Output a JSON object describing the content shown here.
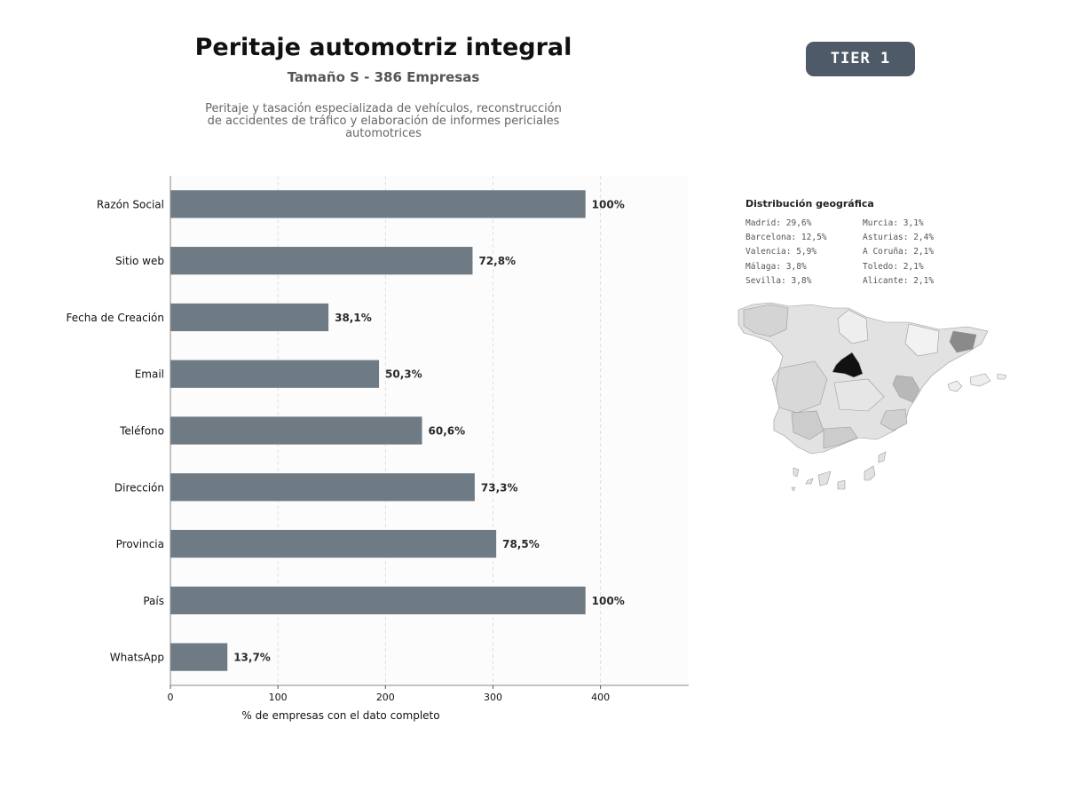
{
  "header": {
    "title": "Peritaje automotriz integral",
    "subtitle": "Tamaño S - 386 Empresas",
    "description": "Peritaje y tasación especializada de vehículos, reconstrucción de accidentes de tráfico y elaboración de informes periciales automotrices",
    "tier_badge": "TIER 1"
  },
  "chart_data": {
    "type": "bar",
    "orientation": "horizontal",
    "categories": [
      "Razón Social",
      "Sitio web",
      "Fecha de Creación",
      "Email",
      "Teléfono",
      "Dirección",
      "Provincia",
      "País",
      "WhatsApp"
    ],
    "values": [
      386,
      281,
      147,
      194,
      234,
      283,
      303,
      386,
      53
    ],
    "data_labels": [
      "100%",
      "72,8%",
      "38,1%",
      "50,3%",
      "60,6%",
      "73,3%",
      "78,5%",
      "100%",
      "13,7%"
    ],
    "xlabel": "% de empresas con el dato completo",
    "ylabel": "",
    "xlim": [
      0,
      482
    ],
    "xticks": [
      0,
      100,
      200,
      300,
      400
    ],
    "grid": true,
    "bar_color": "#6e7a84"
  },
  "geo": {
    "title": "Distribución geográfica",
    "column_1": [
      "Madrid: 29,6%",
      "Barcelona: 12,5%",
      "Valencia: 5,9%",
      "Málaga: 3,8%",
      "Sevilla: 3,8%"
    ],
    "column_2": [
      "Murcia: 3,1%",
      "Asturias: 2,4%",
      "A Coruña: 2,1%",
      "Toledo: 2,1%",
      "Alicante: 2,1%"
    ],
    "highlight_colors": {
      "Madrid": "#111111",
      "Barcelona": "#8a8a8a",
      "Valencia": "#b8b8b8",
      "Málaga": "#cccccc",
      "Sevilla": "#cccccc",
      "default": "#e2e2e2"
    }
  }
}
